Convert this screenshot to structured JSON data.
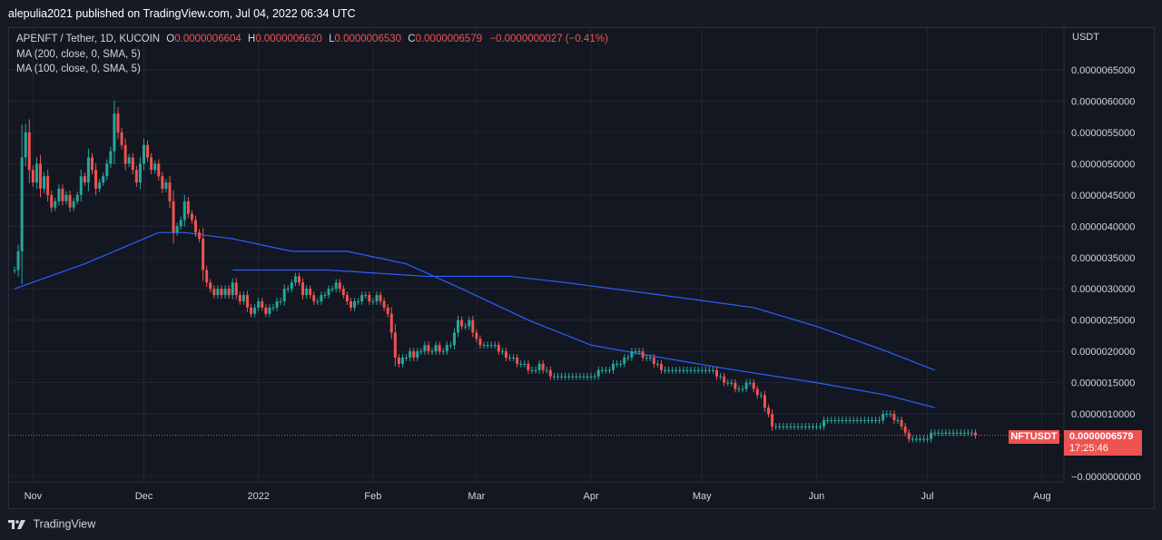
{
  "header": {
    "publisher": "alepulia2021 published on TradingView.com, Jul 04, 2022 06:34 UTC"
  },
  "legend": {
    "symbol": "APENFT / Tether, 1D, KUCOIN",
    "o_label": "O",
    "o_value": "0.0000006604",
    "h_label": "H",
    "h_value": "0.0000006620",
    "l_label": "L",
    "l_value": "0.0000006530",
    "c_label": "C",
    "c_value": "0.0000006579",
    "change": "−0.0000000027 (−0.41%)",
    "ma200": "MA (200, close, 0, SMA, 5)",
    "ma100": "MA (100, close, 0, SMA, 5)"
  },
  "price_axis": {
    "unit": "USDT",
    "ticks": [
      "0.0000065000",
      "0.0000060000",
      "0.0000055000",
      "0.0000050000",
      "0.0000045000",
      "0.0000040000",
      "0.0000035000",
      "0.0000030000",
      "0.0000025000",
      "0.0000020000",
      "0.0000015000",
      "0.0000010000",
      "−0.0000000000"
    ]
  },
  "time_axis": {
    "ticks": [
      "Nov",
      "Dec",
      "2022",
      "Feb",
      "Mar",
      "Apr",
      "May",
      "Jun",
      "Jul",
      "Aug"
    ]
  },
  "price_label": {
    "ticker": "NFTUSDT",
    "price": "0.0000006579",
    "countdown": "17:25:46"
  },
  "footer": {
    "brand": "TradingView"
  },
  "colors": {
    "up": "#26a69a",
    "down": "#ef5350",
    "ma": "#2962ff",
    "grid": "#232632",
    "background": "#131722"
  },
  "chart_data": {
    "type": "candlestick",
    "symbol": "APENFT / Tether",
    "interval": "1D",
    "exchange": "KUCOIN",
    "y_unit": "USDT",
    "ylim": [
      -0.0,
      6.9e-06
    ],
    "grid": true,
    "x_range": [
      "2021-10-27",
      "2022-08-04"
    ],
    "series": [
      {
        "name": "Price (approx. daily closes)",
        "start": "2021-10-27",
        "values": [
          3.3e-06,
          3.6e-06,
          5.1e-06,
          5.5e-06,
          4.9e-06,
          4.7e-06,
          5e-06,
          4.6e-06,
          4.8e-06,
          4.5e-06,
          4.3e-06,
          4.4e-06,
          4.6e-06,
          4.4e-06,
          4.5e-06,
          4.3e-06,
          4.4e-06,
          4.5e-06,
          4.8e-06,
          4.7e-06,
          5.1e-06,
          4.9e-06,
          4.6e-06,
          4.7e-06,
          4.8e-06,
          5e-06,
          5.2e-06,
          5.8e-06,
          5.5e-06,
          5.3e-06,
          5e-06,
          5.1e-06,
          4.9e-06,
          4.7e-06,
          5e-06,
          5.3e-06,
          5.1e-06,
          4.9e-06,
          5e-06,
          4.8e-06,
          4.6e-06,
          4.7e-06,
          4.4e-06,
          3.9e-06,
          4e-06,
          4.1e-06,
          4.4e-06,
          4.2e-06,
          4.1e-06,
          3.9e-06,
          3.8e-06,
          3.3e-06,
          3.1e-06,
          3e-06,
          2.9e-06,
          3e-06,
          2.9e-06,
          3e-06,
          2.9e-06,
          3.1e-06,
          2.9e-06,
          2.8e-06,
          2.9e-06,
          2.7e-06,
          2.6e-06,
          2.7e-06,
          2.8e-06,
          2.7e-06,
          2.6e-06,
          2.7e-06,
          2.7e-06,
          2.8e-06,
          2.8e-06,
          3e-06,
          3e-06,
          3.1e-06,
          3.2e-06,
          3.1e-06,
          2.9e-06,
          3e-06,
          2.9e-06,
          2.8e-06,
          2.8e-06,
          2.9e-06,
          2.9e-06,
          3e-06,
          3e-06,
          3.1e-06,
          3e-06,
          2.9e-06,
          2.8e-06,
          2.7e-06,
          2.8e-06,
          2.8e-06,
          2.9e-06,
          2.9e-06,
          2.8e-06,
          2.8e-06,
          2.9e-06,
          2.8e-06,
          2.7e-06,
          2.6e-06,
          2.3e-06,
          1.9e-06,
          1.8e-06,
          1.9e-06,
          1.9e-06,
          2e-06,
          1.9e-06,
          2e-06,
          2e-06,
          2.1e-06,
          2e-06,
          2e-06,
          2.1e-06,
          2e-06,
          2e-06,
          2.1e-06,
          2.1e-06,
          2.3e-06,
          2.5e-06,
          2.4e-06,
          2.4e-06,
          2.5e-06,
          2.3e-06,
          2.2e-06,
          2.1e-06,
          2.1e-06,
          2.1e-06,
          2.1e-06,
          2.1e-06,
          2e-06,
          2e-06,
          1.9e-06,
          1.9e-06,
          1.9e-06,
          1.8e-06,
          1.8e-06,
          1.8e-06,
          1.7e-06,
          1.7e-06,
          1.7e-06,
          1.8e-06,
          1.7e-06,
          1.7e-06,
          1.6e-06,
          1.6e-06,
          1.6e-06,
          1.6e-06,
          1.6e-06,
          1.6e-06,
          1.6e-06,
          1.6e-06,
          1.6e-06,
          1.6e-06,
          1.6e-06,
          1.6e-06,
          1.6e-06,
          1.7e-06,
          1.7e-06,
          1.7e-06,
          1.7e-06,
          1.8e-06,
          1.8e-06,
          1.8e-06,
          1.9e-06,
          1.9e-06,
          2e-06,
          2e-06,
          2e-06,
          1.9e-06,
          1.9e-06,
          1.9e-06,
          1.8e-06,
          1.8e-06,
          1.7e-06,
          1.7e-06,
          1.7e-06,
          1.7e-06,
          1.7e-06,
          1.7e-06,
          1.7e-06,
          1.7e-06,
          1.7e-06,
          1.7e-06,
          1.7e-06,
          1.7e-06,
          1.7e-06,
          1.7e-06,
          1.7e-06,
          1.6e-06,
          1.6e-06,
          1.5e-06,
          1.5e-06,
          1.5e-06,
          1.4e-06,
          1.4e-06,
          1.4e-06,
          1.5e-06,
          1.5e-06,
          1.4e-06,
          1.3e-06,
          1.3e-06,
          1.1e-06,
          1e-06,
          8e-07,
          8e-07,
          8e-07,
          8e-07,
          8e-07,
          8e-07,
          8e-07,
          8e-07,
          8e-07,
          8e-07,
          8e-07,
          8e-07,
          8e-07,
          8e-07,
          9e-07,
          9e-07,
          9e-07,
          9e-07,
          9e-07,
          9e-07,
          9e-07,
          9e-07,
          9e-07,
          9e-07,
          9e-07,
          9e-07,
          9e-07,
          9e-07,
          9e-07,
          9e-07,
          1e-06,
          1e-06,
          1e-06,
          9e-07,
          9e-07,
          8e-07,
          7e-07,
          6e-07,
          6e-07,
          6e-07,
          6e-07,
          6e-07,
          6e-07,
          7e-07,
          7e-07,
          7e-07,
          7e-07,
          7e-07,
          7e-07,
          7e-07,
          7e-07,
          7e-07,
          7e-07,
          7e-07,
          7e-07,
          6.604e-07
        ]
      },
      {
        "name": "MA (200, close, 0, SMA, 5)",
        "color": "#2962ff",
        "points": [
          [
            "2021-12-25",
            3.3e-06
          ],
          [
            "2022-01-20",
            3.3e-06
          ],
          [
            "2022-02-15",
            3.2e-06
          ],
          [
            "2022-03-10",
            3.2e-06
          ],
          [
            "2022-03-25",
            3.1e-06
          ],
          [
            "2022-04-20",
            2.9e-06
          ],
          [
            "2022-05-15",
            2.7e-06
          ],
          [
            "2022-06-01",
            2.4e-06
          ],
          [
            "2022-06-20",
            2e-06
          ],
          [
            "2022-07-03",
            1.7e-06
          ]
        ]
      },
      {
        "name": "MA (100, close, 0, SMA, 5)",
        "color": "#2962ff",
        "points": [
          [
            "2021-10-27",
            3e-06
          ],
          [
            "2021-11-15",
            3.4e-06
          ],
          [
            "2021-12-05",
            3.9e-06
          ],
          [
            "2021-12-12",
            3.9e-06
          ],
          [
            "2021-12-25",
            3.8e-06
          ],
          [
            "2022-01-10",
            3.6e-06
          ],
          [
            "2022-01-25",
            3.6e-06
          ],
          [
            "2022-02-10",
            3.4e-06
          ],
          [
            "2022-02-25",
            3e-06
          ],
          [
            "2022-03-15",
            2.5e-06
          ],
          [
            "2022-04-01",
            2.1e-06
          ],
          [
            "2022-04-20",
            1.9e-06
          ],
          [
            "2022-05-10",
            1.7e-06
          ],
          [
            "2022-06-01",
            1.5e-06
          ],
          [
            "2022-06-20",
            1.3e-06
          ],
          [
            "2022-07-03",
            1.1e-06
          ]
        ]
      }
    ]
  }
}
